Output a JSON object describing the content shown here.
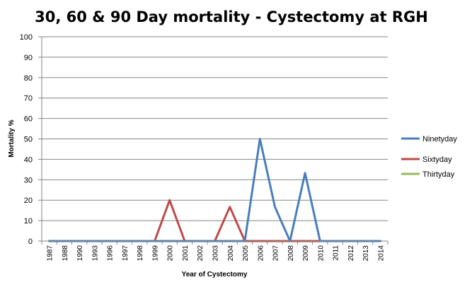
{
  "chart_data": {
    "type": "line",
    "title": "30, 60 & 90 Day mortality - Cystectomy at RGH",
    "xlabel": "Year of Cystectomy",
    "ylabel": "Mortality %",
    "ylim": [
      0,
      100
    ],
    "yticks": [
      0,
      10,
      20,
      30,
      40,
      50,
      60,
      70,
      80,
      90,
      100
    ],
    "grid": true,
    "legend_position": "right",
    "categories": [
      "1987",
      "1988",
      "1990",
      "1993",
      "1996",
      "1997",
      "1998",
      "1999",
      "2000",
      "2001",
      "2002",
      "2003",
      "2004",
      "2005",
      "2006",
      "2007",
      "2008",
      "2009",
      "2010",
      "2011",
      "2012",
      "2013",
      "2014"
    ],
    "series": [
      {
        "name": "Ninetyday",
        "color": "#4a7ebb",
        "values": [
          0,
          0,
          0,
          0,
          0,
          0,
          0,
          0,
          0,
          0,
          0,
          0,
          0,
          0,
          50,
          16.7,
          0,
          33.3,
          0,
          0,
          0,
          0,
          0
        ]
      },
      {
        "name": "Sixtyday",
        "color": "#be4b48",
        "values": [
          0,
          0,
          0,
          0,
          0,
          0,
          0,
          0,
          20,
          0,
          0,
          0,
          16.7,
          0,
          0,
          0,
          0,
          0,
          0,
          0,
          0,
          0,
          0
        ]
      },
      {
        "name": "Thirtyday",
        "color": "#98b954",
        "values": [
          0,
          0,
          0,
          0,
          0,
          0,
          0,
          0,
          0,
          0,
          0,
          0,
          0,
          0,
          0,
          0,
          0,
          0,
          0,
          0,
          0,
          0,
          0
        ]
      }
    ]
  }
}
